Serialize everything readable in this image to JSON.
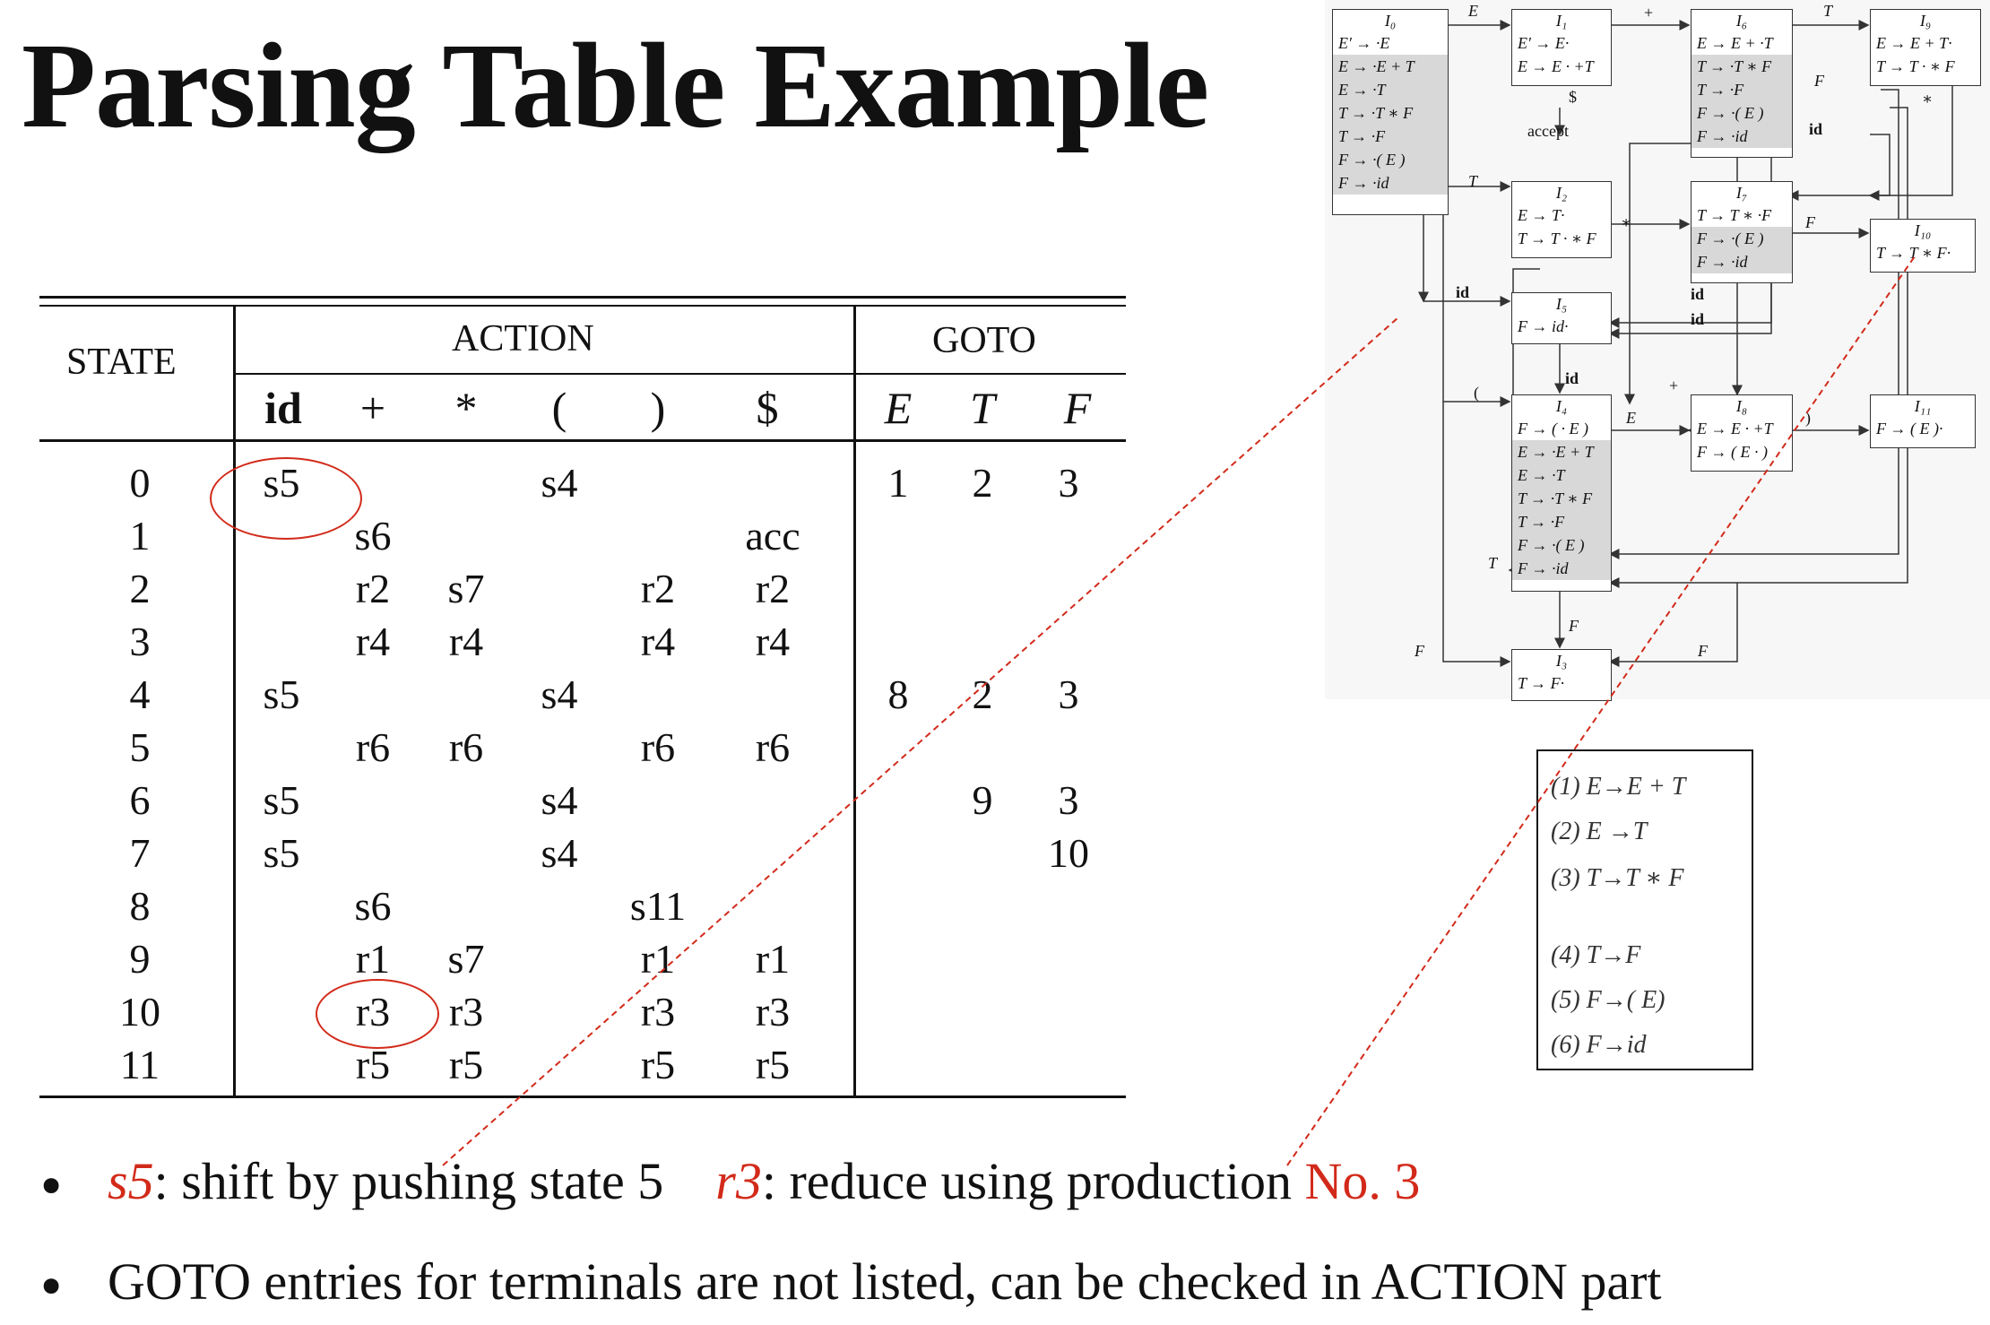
{
  "title": "Parsing Table Example",
  "table": {
    "state_header": "STATE",
    "action_header": "ACTION",
    "goto_header": "GOTO",
    "action_symbols": [
      "id",
      "+",
      "*",
      "(",
      ")",
      "$"
    ],
    "goto_symbols": [
      "E",
      "T",
      "F"
    ],
    "rows": [
      {
        "state": "0",
        "cells": [
          "s5",
          "",
          "",
          "s4",
          "",
          "",
          "1",
          "2",
          "3"
        ]
      },
      {
        "state": "1",
        "cells": [
          "",
          "s6",
          "",
          "",
          "",
          "acc",
          "",
          "",
          ""
        ]
      },
      {
        "state": "2",
        "cells": [
          "",
          "r2",
          "s7",
          "",
          "r2",
          "r2",
          "",
          "",
          ""
        ]
      },
      {
        "state": "3",
        "cells": [
          "",
          "r4",
          "r4",
          "",
          "r4",
          "r4",
          "",
          "",
          ""
        ]
      },
      {
        "state": "4",
        "cells": [
          "s5",
          "",
          "",
          "s4",
          "",
          "",
          "8",
          "2",
          "3"
        ]
      },
      {
        "state": "5",
        "cells": [
          "",
          "r6",
          "r6",
          "",
          "r6",
          "r6",
          "",
          "",
          ""
        ]
      },
      {
        "state": "6",
        "cells": [
          "s5",
          "",
          "",
          "s4",
          "",
          "",
          "",
          "9",
          "3"
        ]
      },
      {
        "state": "7",
        "cells": [
          "s5",
          "",
          "",
          "s4",
          "",
          "",
          "",
          "",
          "10"
        ]
      },
      {
        "state": "8",
        "cells": [
          "",
          "s6",
          "",
          "",
          "s11",
          "",
          "",
          "",
          ""
        ]
      },
      {
        "state": "9",
        "cells": [
          "",
          "r1",
          "s7",
          "",
          "r1",
          "r1",
          "",
          "",
          ""
        ]
      },
      {
        "state": "10",
        "cells": [
          "",
          "r3",
          "r3",
          "",
          "r3",
          "r3",
          "",
          "",
          ""
        ]
      },
      {
        "state": "11",
        "cells": [
          "",
          "r5",
          "r5",
          "",
          "r5",
          "r5",
          "",
          "",
          ""
        ]
      }
    ]
  },
  "automaton": {
    "states": {
      "I0": {
        "name": "I₀",
        "kernel": [
          "E′ → ·E"
        ],
        "closure": [
          "E → ·E + T",
          "E → ·T",
          "T → ·T ∗ F",
          "T → ·F",
          "F → ·( E )",
          "F → ·id"
        ]
      },
      "I1": {
        "name": "I₁",
        "kernel": [
          "E′ → E·",
          "E → E · +T"
        ],
        "closure": []
      },
      "I2": {
        "name": "I₂",
        "kernel": [
          "E → T·",
          "T → T · ∗ F"
        ],
        "closure": []
      },
      "I3": {
        "name": "I₃",
        "kernel": [
          "T → F·"
        ],
        "closure": []
      },
      "I4": {
        "name": "I₄",
        "kernel": [
          "F → ( · E )"
        ],
        "closure": [
          "E → ·E + T",
          "E → ·T",
          "T → ·T ∗ F",
          "T → ·F",
          "F → ·( E )",
          "F → ·id"
        ]
      },
      "I5": {
        "name": "I₅",
        "kernel": [
          "F → id·"
        ],
        "closure": []
      },
      "I6": {
        "name": "I₆",
        "kernel": [
          "E → E + ·T"
        ],
        "closure": [
          "T → ·T ∗ F",
          "T → ·F",
          "F → ·( E )",
          "F → ·id"
        ]
      },
      "I7": {
        "name": "I₇",
        "kernel": [
          "T → T ∗ ·F"
        ],
        "closure": [
          "F → ·( E )",
          "F → ·id"
        ]
      },
      "I8": {
        "name": "I₈",
        "kernel": [
          "E → E · +T",
          "F → ( E · )"
        ],
        "closure": []
      },
      "I9": {
        "name": "I₉",
        "kernel": [
          "E → E + T·",
          "T → T · ∗ F"
        ],
        "closure": []
      },
      "I10": {
        "name": "I₁₀",
        "kernel": [
          "T → T ∗ F·"
        ],
        "closure": []
      },
      "I11": {
        "name": "I₁₁",
        "kernel": [
          "F → ( E )·"
        ],
        "closure": []
      }
    },
    "accept_label": "accept",
    "edge_labels": {
      "E": "E",
      "T": "T",
      "F": "F",
      "id": "id",
      "plus": "+",
      "star": "∗",
      "lparen": "(",
      "rparen": ")",
      "dollar": "$"
    }
  },
  "productions": [
    "(1)  E→E  +  T",
    "(2)  E →T",
    "(3)  T→T ∗ F",
    "(4)  T→F",
    "(5)  F→( E)",
    "(6)  F→id"
  ],
  "bullets": {
    "b1_s5": "s5",
    "b1_s5_rest": ": shift by pushing state 5",
    "b1_r3": "r3",
    "b1_r3_rest": ": reduce using production ",
    "b1_no3": "No. 3",
    "b2": "GOTO entries for terminals are not listed, can be checked in ACTION part"
  },
  "colors": {
    "accent": "#d22a1a",
    "text": "#111111",
    "shade": "#d8d8d8"
  }
}
